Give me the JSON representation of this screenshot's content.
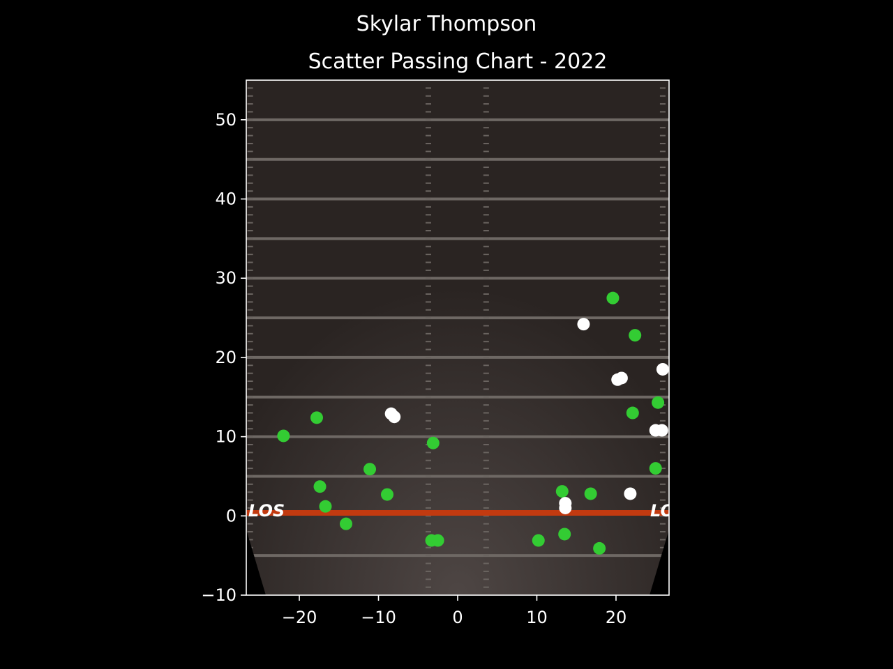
{
  "chart_data": {
    "type": "scatter",
    "suptitle": "Skylar Thompson",
    "title": "Scatter Passing Chart - 2022",
    "xlabel": "",
    "ylabel": "",
    "xlim": [
      -26.7,
      26.7
    ],
    "ylim": [
      -10,
      55
    ],
    "xticks": [
      -20,
      -10,
      0,
      10,
      20
    ],
    "yticks": [
      -10,
      0,
      10,
      20,
      30,
      40,
      50
    ],
    "grid": false,
    "legend": "none",
    "background": "football field",
    "field_marking_text": "LOS",
    "series": [
      {
        "color": "#33cc33",
        "points": [
          {
            "x": -22.0,
            "y": 10.1
          },
          {
            "x": -17.8,
            "y": 12.4
          },
          {
            "x": -17.4,
            "y": 3.7
          },
          {
            "x": -16.7,
            "y": 1.2
          },
          {
            "x": -14.1,
            "y": -1.0
          },
          {
            "x": -11.1,
            "y": 5.9
          },
          {
            "x": -8.9,
            "y": 2.7
          },
          {
            "x": -3.1,
            "y": 9.2
          },
          {
            "x": -3.3,
            "y": -3.1
          },
          {
            "x": -2.5,
            "y": -3.1
          },
          {
            "x": 10.2,
            "y": -3.1
          },
          {
            "x": 13.2,
            "y": 3.1
          },
          {
            "x": 13.5,
            "y": -2.3
          },
          {
            "x": 16.8,
            "y": 2.8
          },
          {
            "x": 17.9,
            "y": -4.1
          },
          {
            "x": 19.6,
            "y": 27.5
          },
          {
            "x": 22.4,
            "y": 22.8
          },
          {
            "x": 22.1,
            "y": 13.0
          },
          {
            "x": 25.3,
            "y": 14.3
          },
          {
            "x": 25.0,
            "y": 6.0
          }
        ]
      },
      {
        "color": "#ffffff",
        "points": [
          {
            "x": -8.4,
            "y": 12.9
          },
          {
            "x": -8.0,
            "y": 12.5
          },
          {
            "x": 13.6,
            "y": 1.6
          },
          {
            "x": 13.6,
            "y": 1.0
          },
          {
            "x": 15.9,
            "y": 24.2
          },
          {
            "x": 20.2,
            "y": 17.2
          },
          {
            "x": 20.7,
            "y": 17.4
          },
          {
            "x": 21.8,
            "y": 2.8
          },
          {
            "x": 25.9,
            "y": 18.5
          },
          {
            "x": 25.0,
            "y": 10.8
          },
          {
            "x": 25.8,
            "y": 10.8
          }
        ]
      }
    ]
  }
}
